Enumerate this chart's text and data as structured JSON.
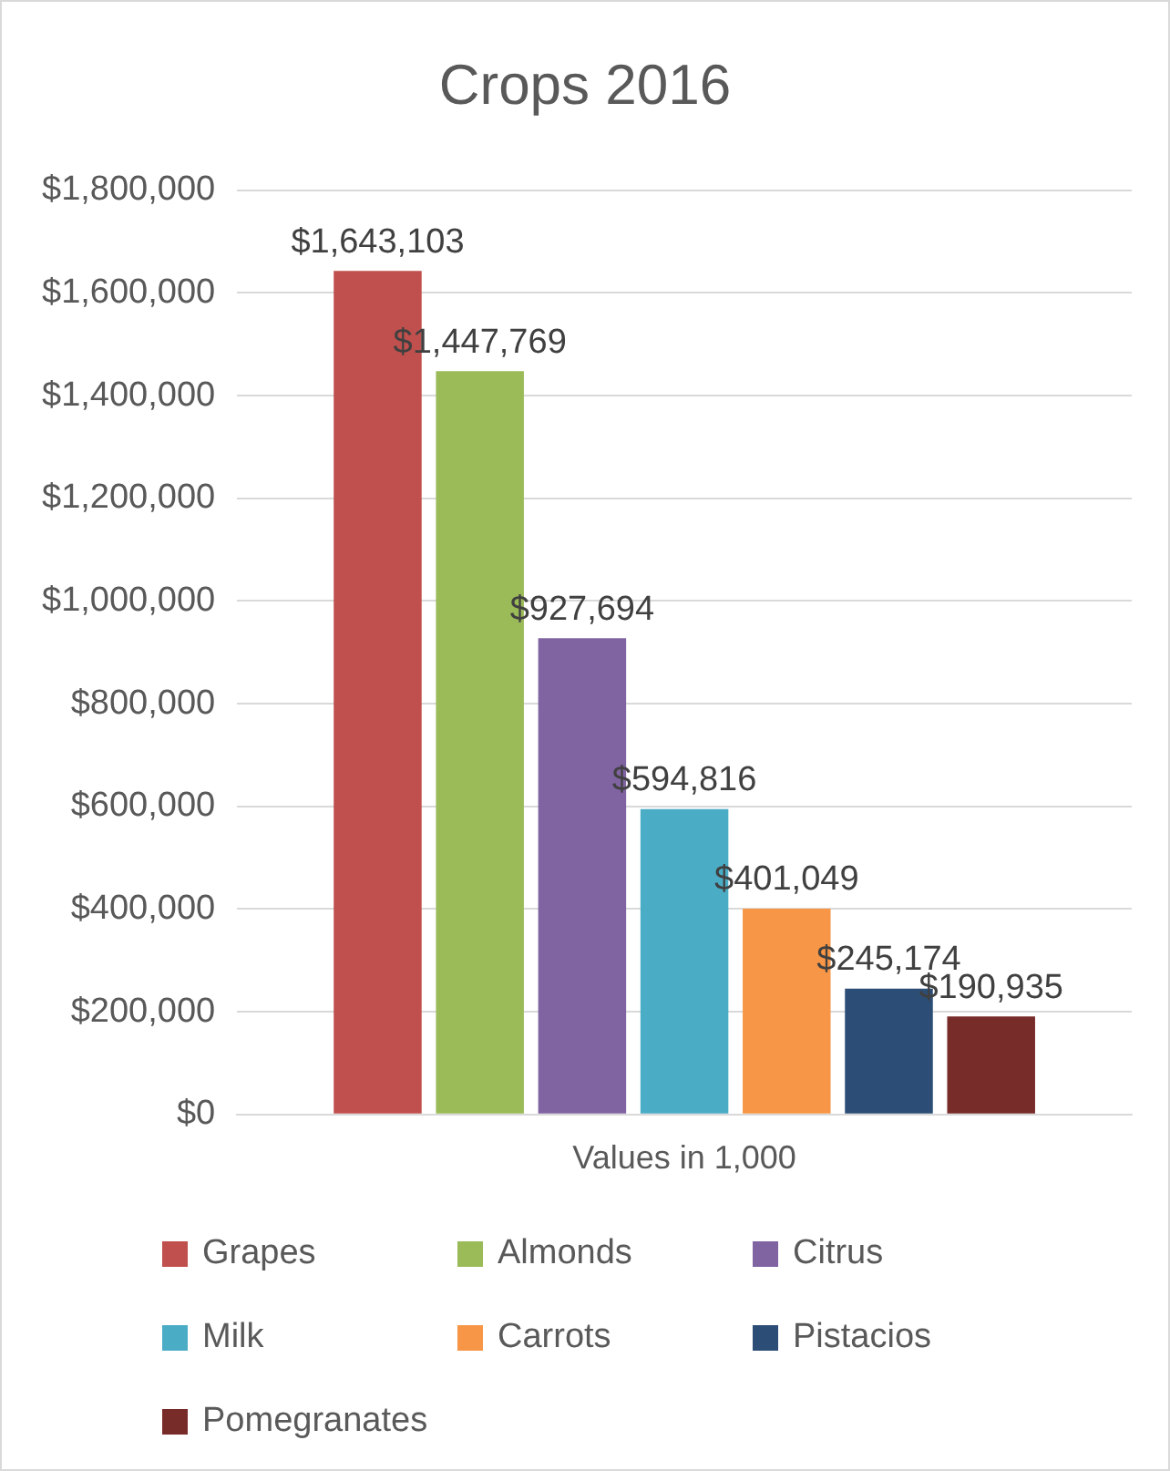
{
  "chart_data": {
    "type": "bar",
    "title": "Crops 2016",
    "categories": [
      "Values in 1,000"
    ],
    "series": [
      {
        "name": "Grapes",
        "color": "#c0504d",
        "values": [
          1643103
        ],
        "value_labels": [
          "$1,643,103"
        ]
      },
      {
        "name": "Almonds",
        "color": "#9bbb59",
        "values": [
          1447769
        ],
        "value_labels": [
          "$1,447,769"
        ]
      },
      {
        "name": "Citrus",
        "color": "#8064a2",
        "values": [
          927694
        ],
        "value_labels": [
          "$927,694"
        ]
      },
      {
        "name": "Milk",
        "color": "#4bacc6",
        "values": [
          594816
        ],
        "value_labels": [
          "$594,816"
        ]
      },
      {
        "name": "Carrots",
        "color": "#f79646",
        "values": [
          401049
        ],
        "value_labels": [
          "$401,049"
        ]
      },
      {
        "name": "Pistacios",
        "color": "#2c4d75",
        "values": [
          245174
        ],
        "value_labels": [
          "$245,174"
        ]
      },
      {
        "name": "Pomegranates",
        "color": "#772c2a",
        "values": [
          190935
        ],
        "value_labels": [
          "$190,935"
        ]
      }
    ],
    "ylim": [
      0,
      1800000
    ],
    "yticks": [
      {
        "value": 0,
        "label": "$0"
      },
      {
        "value": 200000,
        "label": "$200,000"
      },
      {
        "value": 400000,
        "label": "$400,000"
      },
      {
        "value": 600000,
        "label": "$600,000"
      },
      {
        "value": 800000,
        "label": "$800,000"
      },
      {
        "value": 1000000,
        "label": "$1,000,000"
      },
      {
        "value": 1200000,
        "label": "$1,200,000"
      },
      {
        "value": 1400000,
        "label": "$1,400,000"
      },
      {
        "value": 1600000,
        "label": "$1,600,000"
      },
      {
        "value": 1800000,
        "label": "$1,800,000"
      }
    ],
    "grid": "y",
    "legend": "bottom"
  }
}
